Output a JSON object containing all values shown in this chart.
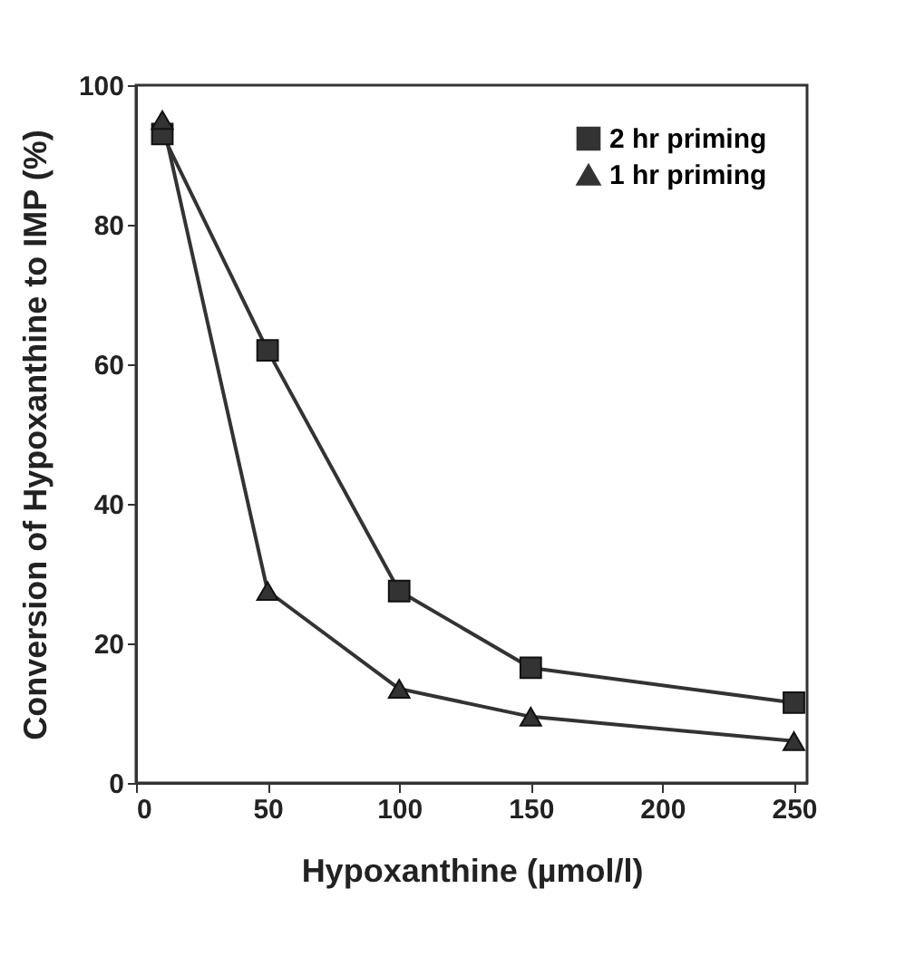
{
  "chart_data": {
    "type": "line",
    "xlabel": "Hypoxanthine (µmol/l)",
    "ylabel": "Conversion of Hypoxanthine to IMP (%)",
    "x": [
      10,
      50,
      100,
      150,
      250
    ],
    "series": [
      {
        "name": "2 hr priming",
        "color": "#333333",
        "marker": "square",
        "values": [
          93,
          62,
          27.5,
          16.5,
          11.5
        ]
      },
      {
        "name": "1 hr priming",
        "color": "#333333",
        "marker": "triangle",
        "values": [
          95,
          27.5,
          13.5,
          9.5,
          6
        ]
      }
    ],
    "xlim": [
      0,
      255
    ],
    "xticks": [
      0,
      50,
      100,
      150,
      200,
      250
    ],
    "ylim": [
      0,
      100
    ],
    "yticks": [
      0,
      20,
      40,
      60,
      80,
      100
    ],
    "grid": false,
    "legend": "top right",
    "line_style": "solid"
  }
}
